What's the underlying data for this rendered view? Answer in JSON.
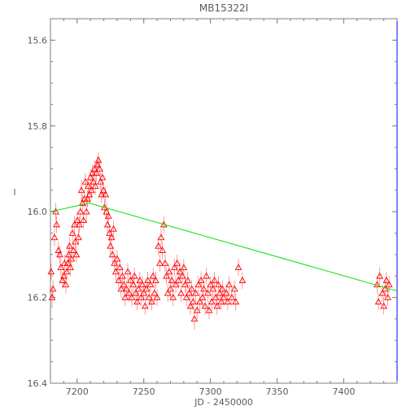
{
  "chart_data": {
    "type": "scatter",
    "title": "MB15322I",
    "xlabel": "JD - 2450000",
    "ylabel": "I",
    "xlim": [
      7180,
      7440
    ],
    "ylim": [
      16.4,
      15.55
    ],
    "y_inverted": true,
    "x_ticks": [
      7200,
      7250,
      7300,
      7350,
      7400
    ],
    "y_ticks": [
      15.6,
      15.8,
      16.0,
      16.2,
      16.4
    ],
    "x_tick_labels": [
      "7200",
      "7250",
      "7300",
      "7350",
      "7400"
    ],
    "y_tick_labels": [
      "15.6",
      "15.8",
      "16.0",
      "16.2",
      "16.4"
    ],
    "colors": {
      "points": "#ff0000",
      "errorbars": "#ff7f7f",
      "model": "#00e000",
      "axes": "#7f7f7f",
      "right_marker": "#0000ff"
    },
    "series": [
      {
        "marker": "triangle-open",
        "points": [
          [
            7180.5,
            16.14,
            0.02
          ],
          [
            7181.2,
            16.2,
            0.025
          ],
          [
            7181.9,
            16.18,
            0.02
          ],
          [
            7183.0,
            16.06,
            0.02
          ],
          [
            7184.0,
            16.0,
            0.02
          ],
          [
            7184.6,
            16.03,
            0.02
          ],
          [
            7186.0,
            16.09,
            0.02
          ],
          [
            7187.0,
            16.1,
            0.02
          ],
          [
            7187.8,
            16.13,
            0.02
          ],
          [
            7189.0,
            16.16,
            0.02
          ],
          [
            7190.0,
            16.15,
            0.02
          ],
          [
            7190.6,
            16.12,
            0.02
          ],
          [
            7191.5,
            16.17,
            0.02
          ],
          [
            7192.2,
            16.14,
            0.02
          ],
          [
            7193.0,
            16.12,
            0.02
          ],
          [
            7193.6,
            16.1,
            0.02
          ],
          [
            7194.3,
            16.08,
            0.02
          ],
          [
            7195.0,
            16.13,
            0.02
          ],
          [
            7195.8,
            16.11,
            0.02
          ],
          [
            7196.5,
            16.05,
            0.02
          ],
          [
            7197.2,
            16.09,
            0.02
          ],
          [
            7198.0,
            16.03,
            0.02
          ],
          [
            7198.6,
            16.07,
            0.02
          ],
          [
            7199.5,
            16.1,
            0.02
          ],
          [
            7200.2,
            16.02,
            0.02
          ],
          [
            7201.0,
            16.06,
            0.02
          ],
          [
            7201.7,
            16.03,
            0.02
          ],
          [
            7202.5,
            16.0,
            0.02
          ],
          [
            7203.2,
            15.95,
            0.025
          ],
          [
            7204.0,
            15.98,
            0.02
          ],
          [
            7204.8,
            16.02,
            0.02
          ],
          [
            7205.5,
            15.97,
            0.02
          ],
          [
            7206.2,
            15.93,
            0.02
          ],
          [
            7207.0,
            16.0,
            0.025
          ],
          [
            7207.8,
            15.97,
            0.02
          ],
          [
            7208.5,
            15.94,
            0.02
          ],
          [
            7209.2,
            15.96,
            0.02
          ],
          [
            7210.0,
            15.92,
            0.02
          ],
          [
            7210.7,
            15.95,
            0.02
          ],
          [
            7211.5,
            15.91,
            0.02
          ],
          [
            7212.2,
            15.93,
            0.02
          ],
          [
            7213.0,
            15.9,
            0.02
          ],
          [
            7213.7,
            15.94,
            0.02
          ],
          [
            7214.5,
            15.91,
            0.02
          ],
          [
            7215.3,
            15.89,
            0.02
          ],
          [
            7216.0,
            15.88,
            0.02
          ],
          [
            7216.8,
            15.9,
            0.02
          ],
          [
            7217.5,
            15.93,
            0.02
          ],
          [
            7218.3,
            15.96,
            0.02
          ],
          [
            7219.0,
            15.92,
            0.02
          ],
          [
            7219.8,
            15.95,
            0.02
          ],
          [
            7220.5,
            15.99,
            0.02
          ],
          [
            7221.3,
            15.96,
            0.02
          ],
          [
            7222.0,
            16.0,
            0.02
          ],
          [
            7222.8,
            16.03,
            0.02
          ],
          [
            7223.5,
            16.01,
            0.02
          ],
          [
            7224.3,
            16.05,
            0.02
          ],
          [
            7225.0,
            16.08,
            0.02
          ],
          [
            7225.8,
            16.06,
            0.02
          ],
          [
            7226.5,
            16.1,
            0.02
          ],
          [
            7227.3,
            16.04,
            0.02
          ],
          [
            7228.0,
            16.12,
            0.02
          ],
          [
            7229.0,
            16.14,
            0.02
          ],
          [
            7230.0,
            16.11,
            0.02
          ],
          [
            7231.2,
            16.16,
            0.02
          ],
          [
            7232.0,
            16.13,
            0.02
          ],
          [
            7233.0,
            16.18,
            0.02
          ],
          [
            7234.0,
            16.15,
            0.02
          ],
          [
            7235.2,
            16.17,
            0.02
          ],
          [
            7236.0,
            16.2,
            0.02
          ],
          [
            7237.0,
            16.18,
            0.02
          ],
          [
            7238.0,
            16.14,
            0.02
          ],
          [
            7239.0,
            16.19,
            0.02
          ],
          [
            7240.0,
            16.16,
            0.02
          ],
          [
            7241.0,
            16.2,
            0.02
          ],
          [
            7242.2,
            16.17,
            0.02
          ],
          [
            7243.0,
            16.15,
            0.02
          ],
          [
            7244.0,
            16.19,
            0.02
          ],
          [
            7245.0,
            16.21,
            0.02
          ],
          [
            7246.0,
            16.18,
            0.02
          ],
          [
            7247.0,
            16.16,
            0.02
          ],
          [
            7248.0,
            16.2,
            0.02
          ],
          [
            7249.0,
            16.17,
            0.02
          ],
          [
            7250.0,
            16.19,
            0.02
          ],
          [
            7251.0,
            16.22,
            0.02
          ],
          [
            7252.0,
            16.18,
            0.02
          ],
          [
            7253.0,
            16.16,
            0.02
          ],
          [
            7254.0,
            16.2,
            0.02
          ],
          [
            7255.0,
            16.17,
            0.02
          ],
          [
            7256.0,
            16.21,
            0.02
          ],
          [
            7257.0,
            16.15,
            0.02
          ],
          [
            7258.0,
            16.19,
            0.02
          ],
          [
            7259.0,
            16.16,
            0.02
          ],
          [
            7260.0,
            16.2,
            0.02
          ],
          [
            7261.0,
            16.08,
            0.02
          ],
          [
            7262.0,
            16.12,
            0.02
          ],
          [
            7263.0,
            16.06,
            0.02
          ],
          [
            7264.0,
            16.09,
            0.02
          ],
          [
            7265.0,
            16.03,
            0.02
          ],
          [
            7266.0,
            16.12,
            0.02
          ],
          [
            7267.0,
            16.15,
            0.02
          ],
          [
            7268.0,
            16.19,
            0.02
          ],
          [
            7269.0,
            16.14,
            0.02
          ],
          [
            7270.0,
            16.18,
            0.02
          ],
          [
            7271.0,
            16.16,
            0.02
          ],
          [
            7272.0,
            16.2,
            0.02
          ],
          [
            7273.0,
            16.13,
            0.02
          ],
          [
            7274.0,
            16.17,
            0.02
          ],
          [
            7275.0,
            16.12,
            0.02
          ],
          [
            7276.0,
            16.16,
            0.02
          ],
          [
            7277.0,
            16.14,
            0.02
          ],
          [
            7278.0,
            16.19,
            0.02
          ],
          [
            7279.0,
            16.15,
            0.02
          ],
          [
            7280.0,
            16.13,
            0.02
          ],
          [
            7281.0,
            16.17,
            0.02
          ],
          [
            7282.0,
            16.2,
            0.02
          ],
          [
            7283.0,
            16.16,
            0.02
          ],
          [
            7284.0,
            16.19,
            0.02
          ],
          [
            7285.0,
            16.22,
            0.02
          ],
          [
            7286.0,
            16.18,
            0.02
          ],
          [
            7287.0,
            16.21,
            0.02
          ],
          [
            7288.0,
            16.25,
            0.025
          ],
          [
            7289.0,
            16.19,
            0.02
          ],
          [
            7290.0,
            16.23,
            0.02
          ],
          [
            7291.0,
            16.17,
            0.02
          ],
          [
            7292.0,
            16.21,
            0.02
          ],
          [
            7293.0,
            16.16,
            0.02
          ],
          [
            7294.0,
            16.2,
            0.02
          ],
          [
            7295.0,
            16.18,
            0.02
          ],
          [
            7296.0,
            16.22,
            0.02
          ],
          [
            7297.0,
            16.15,
            0.02
          ],
          [
            7298.0,
            16.19,
            0.02
          ],
          [
            7299.0,
            16.23,
            0.02
          ],
          [
            7300.0,
            16.17,
            0.02
          ],
          [
            7301.0,
            16.21,
            0.02
          ],
          [
            7302.0,
            16.18,
            0.02
          ],
          [
            7303.0,
            16.16,
            0.02
          ],
          [
            7304.0,
            16.2,
            0.02
          ],
          [
            7305.0,
            16.22,
            0.02
          ],
          [
            7306.0,
            16.17,
            0.02
          ],
          [
            7307.0,
            16.19,
            0.02
          ],
          [
            7308.0,
            16.21,
            0.02
          ],
          [
            7309.0,
            16.18,
            0.02
          ],
          [
            7310.0,
            16.2,
            0.02
          ],
          [
            7312.0,
            16.19,
            0.02
          ],
          [
            7313.0,
            16.21,
            0.02
          ],
          [
            7314.0,
            16.17,
            0.02
          ],
          [
            7316.0,
            16.2,
            0.02
          ],
          [
            7318.0,
            16.18,
            0.02
          ],
          [
            7319.0,
            16.21,
            0.02
          ],
          [
            7321.0,
            16.13,
            0.02
          ],
          [
            7324.0,
            16.16,
            0.02
          ],
          [
            7425.0,
            16.17,
            0.02
          ],
          [
            7426.0,
            16.21,
            0.02
          ],
          [
            7427.0,
            16.15,
            0.02
          ],
          [
            7429.0,
            16.19,
            0.02
          ],
          [
            7430.0,
            16.22,
            0.02
          ],
          [
            7431.0,
            16.18,
            0.02
          ],
          [
            7432.0,
            16.16,
            0.02
          ],
          [
            7433.0,
            16.2,
            0.02
          ],
          [
            7434.0,
            16.17,
            0.02
          ]
        ]
      }
    ],
    "model_curve": {
      "x": [
        7180,
        7209,
        7440
      ],
      "y": [
        16.0,
        15.98,
        16.185
      ]
    }
  }
}
